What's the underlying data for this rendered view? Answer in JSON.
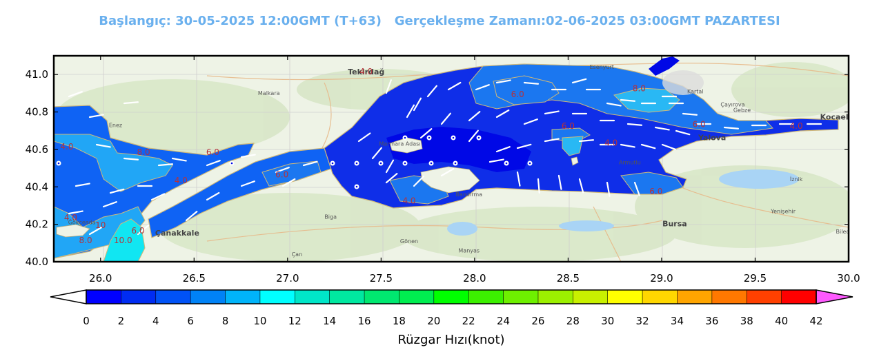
{
  "header": {
    "title": "Başlangıç: 30-05-2025 12:00GMT (T+63)   Gerçekleşme Zamanı:02-06-2025 03:00GMT PAZARTESI",
    "color": "#6ab0ee"
  },
  "map": {
    "lon_range": [
      25.75,
      30.0
    ],
    "lat_range": [
      40.0,
      41.1
    ],
    "x_ticks": [
      "26.0",
      "26.5",
      "27.0",
      "27.5",
      "28.0",
      "28.5",
      "29.0",
      "29.5",
      "30.0"
    ],
    "y_ticks": [
      "40.0",
      "40.2",
      "40.4",
      "40.6",
      "40.8",
      "41.0"
    ],
    "place_labels": [
      {
        "name": "Tekirdağ",
        "lon": 27.42,
        "lat": 41.0
      },
      {
        "name": "Malkara",
        "lon": 26.9,
        "lat": 40.89
      },
      {
        "name": "Esenyurt",
        "lon": 28.68,
        "lat": 41.03
      },
      {
        "name": "Kocaeli",
        "lon": 29.93,
        "lat": 40.76
      },
      {
        "name": "Yalova",
        "lon": 29.27,
        "lat": 40.65
      },
      {
        "name": "Bursa",
        "lon": 29.07,
        "lat": 40.19
      },
      {
        "name": "Çanakkale",
        "lon": 26.41,
        "lat": 40.14
      },
      {
        "name": "Gökçeada",
        "lon": 25.9,
        "lat": 40.2
      },
      {
        "name": "Bandırma",
        "lon": 27.97,
        "lat": 40.35
      },
      {
        "name": "Biga",
        "lon": 27.23,
        "lat": 40.23
      },
      {
        "name": "Gönen",
        "lon": 27.65,
        "lat": 40.1
      },
      {
        "name": "Manyas",
        "lon": 27.97,
        "lat": 40.05
      },
      {
        "name": "Çan",
        "lon": 27.05,
        "lat": 40.03
      },
      {
        "name": "Armutlu",
        "lon": 28.83,
        "lat": 40.52
      },
      {
        "name": "Marmara Adası",
        "lon": 27.6,
        "lat": 40.62
      },
      {
        "name": "İznik",
        "lon": 29.72,
        "lat": 40.43
      },
      {
        "name": "Yenişehir",
        "lon": 29.65,
        "lat": 40.26
      },
      {
        "name": "Bilecik",
        "lon": 29.98,
        "lat": 40.15
      },
      {
        "name": "Gebze",
        "lon": 29.43,
        "lat": 40.8
      },
      {
        "name": "Çayırova",
        "lon": 29.38,
        "lat": 40.83
      },
      {
        "name": "Enez",
        "lon": 26.08,
        "lat": 40.72
      },
      {
        "name": "Kartal",
        "lon": 29.18,
        "lat": 40.9
      }
    ],
    "contour_labels": [
      {
        "text": "4.0",
        "lon": 27.42,
        "lat": 41.0
      },
      {
        "text": "6.0",
        "lon": 28.23,
        "lat": 40.88
      },
      {
        "text": "8.0",
        "lon": 28.88,
        "lat": 40.91
      },
      {
        "text": "6.0",
        "lon": 28.5,
        "lat": 40.71
      },
      {
        "text": "6.0",
        "lon": 29.2,
        "lat": 40.72
      },
      {
        "text": "4.0",
        "lon": 29.72,
        "lat": 40.71
      },
      {
        "text": "4.0",
        "lon": 28.73,
        "lat": 40.62
      },
      {
        "text": "4.0",
        "lon": 25.82,
        "lat": 40.6
      },
      {
        "text": "8.0",
        "lon": 26.23,
        "lat": 40.57
      },
      {
        "text": "6.0",
        "lon": 26.6,
        "lat": 40.57
      },
      {
        "text": "6.0",
        "lon": 26.97,
        "lat": 40.45
      },
      {
        "text": "4.0",
        "lon": 26.43,
        "lat": 40.42
      },
      {
        "text": "4.0",
        "lon": 27.65,
        "lat": 40.31
      },
      {
        "text": "6.0",
        "lon": 28.97,
        "lat": 40.36
      },
      {
        "text": "4.0",
        "lon": 25.84,
        "lat": 40.22
      },
      {
        "text": "8.0",
        "lon": 25.92,
        "lat": 40.1
      },
      {
        "text": "10.0",
        "lon": 26.12,
        "lat": 40.1
      },
      {
        "text": "6.0",
        "lon": 26.2,
        "lat": 40.15
      },
      {
        "text": "10",
        "lon": 26.0,
        "lat": 40.18
      }
    ]
  },
  "colorbar": {
    "ticks": [
      "0",
      "2",
      "4",
      "6",
      "8",
      "10",
      "12",
      "14",
      "16",
      "18",
      "20",
      "22",
      "24",
      "26",
      "28",
      "30",
      "32",
      "34",
      "36",
      "38",
      "40",
      "42"
    ],
    "colors": [
      "#0000ff",
      "#002cf2",
      "#0052f6",
      "#0082f6",
      "#00b4fa",
      "#00ffff",
      "#00e6c8",
      "#00e8a0",
      "#00e870",
      "#00ee50",
      "#00ff00",
      "#3cf000",
      "#6ef000",
      "#9cf000",
      "#c8f000",
      "#ffff00",
      "#ffd700",
      "#ffa500",
      "#ff7800",
      "#ff4000",
      "#ff0000"
    ],
    "over_color": "#ff5aff",
    "under_color": "#ffffff",
    "label": "Rüzgar Hızı(knot)"
  }
}
